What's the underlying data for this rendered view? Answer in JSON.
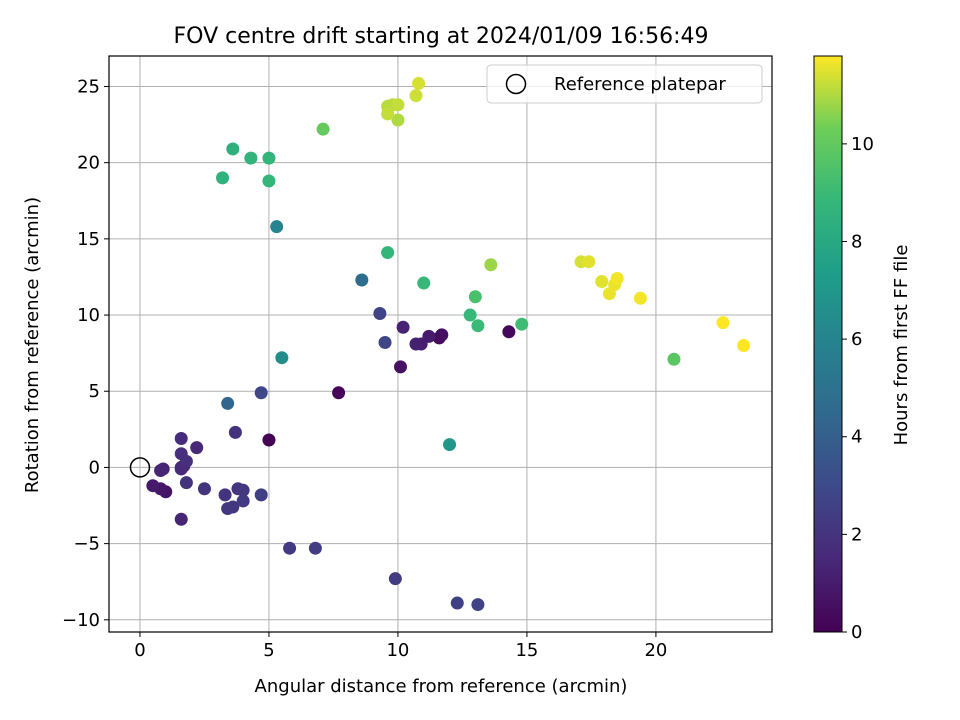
{
  "chart_data": {
    "type": "scatter",
    "title": "FOV centre drift starting at 2024/01/09 16:56:49",
    "xlabel": "Angular distance from reference (arcmin)",
    "ylabel": "Rotation from reference (arcmin)",
    "xlim": [
      -1.2,
      24.5
    ],
    "ylim": [
      -10.8,
      27.0
    ],
    "xticks": [
      0,
      5,
      10,
      15,
      20
    ],
    "yticks": [
      -10,
      -5,
      0,
      5,
      10,
      15,
      20,
      25
    ],
    "grid": true,
    "legend": {
      "position": "top-right",
      "entries": [
        "Reference platepar"
      ]
    },
    "reference_point": {
      "x": 0,
      "y": 0,
      "label": "Reference platepar"
    },
    "colorbar": {
      "label": "Hours from first FF file",
      "colormap": "viridis",
      "range": [
        0,
        11.8
      ],
      "ticks": [
        0,
        2,
        4,
        6,
        8,
        10
      ]
    },
    "points": [
      {
        "x": 5.0,
        "y": 1.8,
        "h": 0.1
      },
      {
        "x": 7.7,
        "y": 4.9,
        "h": 0.2
      },
      {
        "x": 14.3,
        "y": 8.9,
        "h": 0.3
      },
      {
        "x": 11.6,
        "y": 8.5,
        "h": 0.4
      },
      {
        "x": 11.7,
        "y": 8.7,
        "h": 0.5
      },
      {
        "x": 10.1,
        "y": 6.6,
        "h": 0.6
      },
      {
        "x": 1.0,
        "y": -1.6,
        "h": 0.7
      },
      {
        "x": 0.8,
        "y": -1.4,
        "h": 0.8
      },
      {
        "x": 0.5,
        "y": -1.2,
        "h": 0.9
      },
      {
        "x": 11.2,
        "y": 8.6,
        "h": 1.0
      },
      {
        "x": 10.9,
        "y": 8.1,
        "h": 1.1
      },
      {
        "x": 10.7,
        "y": 8.1,
        "h": 1.2
      },
      {
        "x": 10.2,
        "y": 9.2,
        "h": 1.3
      },
      {
        "x": 0.9,
        "y": -0.1,
        "h": 1.3
      },
      {
        "x": 0.8,
        "y": -0.2,
        "h": 1.4
      },
      {
        "x": 1.6,
        "y": -3.4,
        "h": 1.4
      },
      {
        "x": 2.2,
        "y": 1.3,
        "h": 1.5
      },
      {
        "x": 1.6,
        "y": 0.0,
        "h": 1.5
      },
      {
        "x": 1.6,
        "y": -0.1,
        "h": 1.6
      },
      {
        "x": 1.7,
        "y": 0.1,
        "h": 1.6
      },
      {
        "x": 1.6,
        "y": 1.9,
        "h": 1.7
      },
      {
        "x": 1.6,
        "y": 0.9,
        "h": 1.8
      },
      {
        "x": 1.8,
        "y": 0.4,
        "h": 1.8
      },
      {
        "x": 1.8,
        "y": -1.0,
        "h": 1.9
      },
      {
        "x": 3.7,
        "y": 2.3,
        "h": 1.9
      },
      {
        "x": 2.5,
        "y": -1.4,
        "h": 2.0
      },
      {
        "x": 3.3,
        "y": -1.8,
        "h": 2.0
      },
      {
        "x": 3.8,
        "y": -1.4,
        "h": 2.1
      },
      {
        "x": 3.4,
        "y": -2.7,
        "h": 2.1
      },
      {
        "x": 3.6,
        "y": -2.6,
        "h": 2.2
      },
      {
        "x": 4.0,
        "y": -1.5,
        "h": 2.2
      },
      {
        "x": 4.0,
        "y": -2.2,
        "h": 2.3
      },
      {
        "x": 5.8,
        "y": -5.3,
        "h": 2.3
      },
      {
        "x": 6.8,
        "y": -5.3,
        "h": 2.4
      },
      {
        "x": 9.9,
        "y": -7.3,
        "h": 2.4
      },
      {
        "x": 4.7,
        "y": -1.8,
        "h": 2.5
      },
      {
        "x": 12.3,
        "y": -8.9,
        "h": 2.6
      },
      {
        "x": 13.1,
        "y": -9.0,
        "h": 2.7
      },
      {
        "x": 9.3,
        "y": 10.1,
        "h": 2.7
      },
      {
        "x": 9.5,
        "y": 8.2,
        "h": 2.8
      },
      {
        "x": 4.7,
        "y": 4.9,
        "h": 2.9
      },
      {
        "x": 3.4,
        "y": 4.2,
        "h": 4.4
      },
      {
        "x": 8.6,
        "y": 12.3,
        "h": 4.7
      },
      {
        "x": 5.3,
        "y": 15.8,
        "h": 6.0
      },
      {
        "x": 5.5,
        "y": 7.2,
        "h": 6.5
      },
      {
        "x": 12.0,
        "y": 1.5,
        "h": 7.0
      },
      {
        "x": 3.6,
        "y": 20.9,
        "h": 8.4
      },
      {
        "x": 3.2,
        "y": 19.0,
        "h": 8.5
      },
      {
        "x": 4.3,
        "y": 20.3,
        "h": 8.6
      },
      {
        "x": 5.0,
        "y": 20.3,
        "h": 8.7
      },
      {
        "x": 5.0,
        "y": 18.8,
        "h": 8.8
      },
      {
        "x": 9.6,
        "y": 14.1,
        "h": 8.8
      },
      {
        "x": 11.0,
        "y": 12.1,
        "h": 8.9
      },
      {
        "x": 12.8,
        "y": 10.0,
        "h": 8.9
      },
      {
        "x": 13.1,
        "y": 9.3,
        "h": 9.0
      },
      {
        "x": 14.8,
        "y": 9.4,
        "h": 9.1
      },
      {
        "x": 13.0,
        "y": 11.2,
        "h": 9.4
      },
      {
        "x": 20.7,
        "y": 7.1,
        "h": 9.8
      },
      {
        "x": 7.1,
        "y": 22.2,
        "h": 10.1
      },
      {
        "x": 13.6,
        "y": 13.3,
        "h": 10.8
      },
      {
        "x": 10.0,
        "y": 22.8,
        "h": 11.0
      },
      {
        "x": 9.6,
        "y": 23.7,
        "h": 11.1
      },
      {
        "x": 9.8,
        "y": 23.8,
        "h": 11.1
      },
      {
        "x": 9.6,
        "y": 23.2,
        "h": 11.2
      },
      {
        "x": 10.0,
        "y": 23.8,
        "h": 11.2
      },
      {
        "x": 10.7,
        "y": 24.4,
        "h": 11.3
      },
      {
        "x": 10.8,
        "y": 25.2,
        "h": 11.4
      },
      {
        "x": 17.1,
        "y": 13.5,
        "h": 11.4
      },
      {
        "x": 17.4,
        "y": 13.5,
        "h": 11.5
      },
      {
        "x": 17.9,
        "y": 12.2,
        "h": 11.5
      },
      {
        "x": 18.2,
        "y": 11.4,
        "h": 11.6
      },
      {
        "x": 18.4,
        "y": 12.0,
        "h": 11.6
      },
      {
        "x": 18.5,
        "y": 12.4,
        "h": 11.7
      },
      {
        "x": 19.4,
        "y": 11.1,
        "h": 11.7
      },
      {
        "x": 22.6,
        "y": 9.5,
        "h": 11.8
      },
      {
        "x": 23.4,
        "y": 8.0,
        "h": 11.8
      }
    ]
  }
}
